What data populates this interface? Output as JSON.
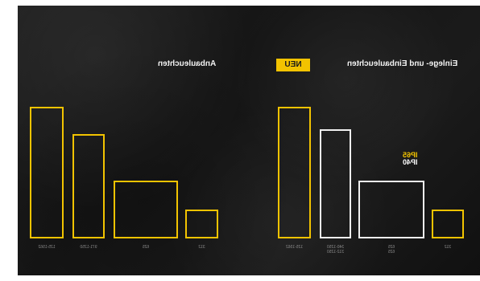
{
  "titles": {
    "left": "Anbauleuchten",
    "right": "Einlege- und Einbauleuchten"
  },
  "badge": {
    "label": "NEU"
  },
  "ip_labels": {
    "top": "IP65",
    "bottom": "IP40"
  },
  "left_group": {
    "bars": [
      {
        "label": "125-1562",
        "color": "#f2c300",
        "value": 0.82
      },
      {
        "label": "971-1250",
        "color": "#f2c300",
        "value": 0.65
      },
      {
        "label": "625",
        "color": "#f2c300",
        "value": 0.36
      },
      {
        "label": "312",
        "color": "#f2c300",
        "value": 0.18
      }
    ]
  },
  "right_group": {
    "bars": [
      {
        "label": "125-1562",
        "color": "#f2c300",
        "value": 0.82
      },
      {
        "label": "340-1250",
        "label2": "312-1250",
        "color": "#f1f1f1",
        "value": 0.68
      },
      {
        "label": "625",
        "label2": "625",
        "color": "#f1f1f1",
        "value": 0.36
      },
      {
        "label": "312",
        "color": "#f2c300",
        "value": 0.18
      }
    ]
  }
}
